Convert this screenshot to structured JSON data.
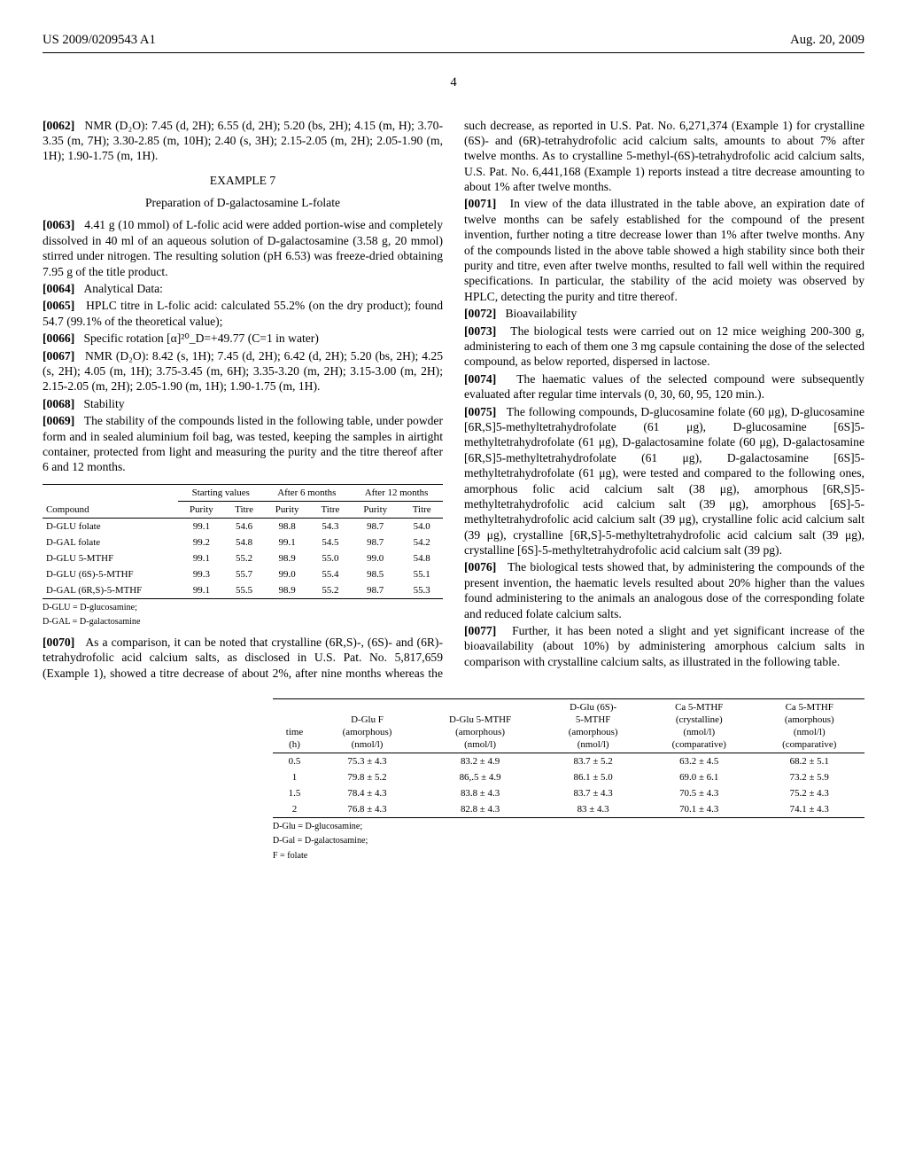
{
  "header": {
    "left": "US 2009/0209543 A1",
    "right": "Aug. 20, 2009"
  },
  "page_number": "4",
  "p0062": {
    "num": "[0062]",
    "text": "NMR (D₂O): 7.45 (d, 2H); 6.55 (d, 2H); 5.20 (bs, 2H); 4.15 (m, H); 3.70-3.35 (m, 7H); 3.30-2.85 (m, 10H); 2.40 (s, 3H); 2.15-2.05 (m, 2H); 2.05-1.90 (m, 1H); 1.90-1.75 (m, 1H)."
  },
  "example7": {
    "title": "EXAMPLE 7",
    "subtitle": "Preparation of D-galactosamine L-folate"
  },
  "p0063": {
    "num": "[0063]",
    "text": "4.41 g (10 mmol) of L-folic acid were added portion-wise and completely dissolved in 40 ml of an aqueous solution of D-galactosamine (3.58 g, 20 mmol) stirred under nitrogen. The resulting solution (pH 6.53) was freeze-dried obtaining 7.95 g of the title product."
  },
  "p0064": {
    "num": "[0064]",
    "text": "Analytical Data:"
  },
  "p0065": {
    "num": "[0065]",
    "text": "HPLC titre in L-folic acid: calculated 55.2% (on the dry product); found 54.7 (99.1% of the theoretical value);"
  },
  "p0066": {
    "num": "[0066]",
    "text": "Specific rotation [α]²⁰_D=+49.77 (C=1 in water)"
  },
  "p0067": {
    "num": "[0067]",
    "text": "NMR (D₂O): 8.42 (s, 1H); 7.45 (d, 2H); 6.42 (d, 2H); 5.20 (bs, 2H); 4.25 (s, 2H); 4.05 (m, 1H); 3.75-3.45 (m, 6H); 3.35-3.20 (m, 2H); 3.15-3.00 (m, 2H); 2.15-2.05 (m, 2H); 2.05-1.90 (m, 1H); 1.90-1.75 (m, 1H)."
  },
  "p0068": {
    "num": "[0068]",
    "text": "Stability"
  },
  "p0069": {
    "num": "[0069]",
    "text": "The stability of the compounds listed in the following table, under powder form and in sealed aluminium foil bag, was tested, keeping the samples in airtight container, protected from light and measuring the purity and the titre thereof after 6 and 12 months."
  },
  "stability_table": {
    "group_headers": [
      "Starting values",
      "After 6 months",
      "After 12 months"
    ],
    "columns": [
      "Compound",
      "Purity",
      "Titre",
      "Purity",
      "Titre",
      "Purity",
      "Titre"
    ],
    "rows": [
      [
        "D-GLU folate",
        "99.1",
        "54.6",
        "98.8",
        "54.3",
        "98.7",
        "54.0"
      ],
      [
        "D-GAL folate",
        "99.2",
        "54.8",
        "99.1",
        "54.5",
        "98.7",
        "54.2"
      ],
      [
        "D-GLU 5-MTHF",
        "99.1",
        "55.2",
        "98.9",
        "55.0",
        "99.0",
        "54.8"
      ],
      [
        "D-GLU (6S)-5-MTHF",
        "99.3",
        "55.7",
        "99.0",
        "55.4",
        "98.5",
        "55.1"
      ],
      [
        "D-GAL (6R,S)-5-MTHF",
        "99.1",
        "55.5",
        "98.9",
        "55.2",
        "98.7",
        "55.3"
      ]
    ],
    "footnotes": [
      "D-GLU = D-glucosamine;",
      "D-GAL = D-galactosamine"
    ]
  },
  "p0070": {
    "num": "[0070]",
    "text": "As a comparison, it can be noted that crystalline (6R,S)-, (6S)- and (6R)-tetrahydrofolic acid calcium salts, as disclosed in U.S. Pat. No. 5,817,659 (Example 1), showed a titre decrease of about 2%, after nine months whereas the such decrease, as reported in U.S. Pat. No. 6,271,374 (Example 1) for crystalline (6S)- and (6R)-tetrahydrofolic acid calcium salts, amounts to about 7% after twelve months. As to crystalline 5-methyl-(6S)-tetrahydrofolic acid calcium salts, U.S. Pat. No. 6,441,168 (Example 1) reports instead a titre decrease amounting to about 1% after twelve months."
  },
  "p0071": {
    "num": "[0071]",
    "text": "In view of the data illustrated in the table above, an expiration date of twelve months can be safely established for the compound of the present invention, further noting a titre decrease lower than 1% after twelve months. Any of the compounds listed in the above table showed a high stability since both their purity and titre, even after twelve months, resulted to fall well within the required specifications. In particular, the stability of the acid moiety was observed by HPLC, detecting the purity and titre thereof."
  },
  "p0072": {
    "num": "[0072]",
    "text": "Bioavailability"
  },
  "p0073": {
    "num": "[0073]",
    "text": "The biological tests were carried out on 12 mice weighing 200-300 g, administering to each of them one 3 mg capsule containing the dose of the selected compound, as below reported, dispersed in lactose."
  },
  "p0074": {
    "num": "[0074]",
    "text": "The haematic values of the selected compound were subsequently evaluated after regular time intervals (0, 30, 60, 95, 120 min.)."
  },
  "p0075": {
    "num": "[0075]",
    "text": "The following compounds, D-glucosamine folate (60 μg), D-glucosamine [6R,S]5-methyltetrahydrofolate (61 μg), D-glucosamine [6S]5-methyltetrahydrofolate (61 μg), D-galactosamine folate (60 μg), D-galactosamine [6R,S]5-methyltetrahydrofolate (61 μg), D-galactosamine [6S]5-methyltetrahydrofolate (61 μg), were tested and compared to the following ones, amorphous folic acid calcium salt (38 μg), amorphous [6R,S]5-methyltetrahydrofolic acid calcium salt (39 μg), amorphous [6S]-5-methyltetrahydrofolic acid calcium salt (39 μg), crystalline folic acid calcium salt (39 μg), crystalline [6R,S]-5-methyltetrahydrofolic acid calcium salt (39 μg), crystalline [6S]-5-methyltetrahydrofolic acid calcium salt (39 pg)."
  },
  "p0076": {
    "num": "[0076]",
    "text": "The biological tests showed that, by administering the compounds of the present invention, the haematic levels resulted about 20% higher than the values found administering to the animals an analogous dose of the corresponding folate and reduced folate calcium salts."
  },
  "p0077": {
    "num": "[0077]",
    "text": "Further, it has been noted a slight and yet significant increase of the bioavailability (about 10%) by administering amorphous calcium salts in comparison with crystalline calcium salts, as illustrated in the following table."
  },
  "bio_table": {
    "columns": [
      "time (h)",
      "D-Glu F (amorphous) (nmol/l)",
      "D-Glu 5-MTHF (amorphous) (nmol/l)",
      "D-Glu (6S)-5-MTHF (amorphous) (nmol/l)",
      "Ca 5-MTHF (crystalline) (nmol/l) (comparative)",
      "Ca 5-MTHF (amorphous) (nmol/l) (comparative)"
    ],
    "rows": [
      [
        "0.5",
        "75.3 ± 4.3",
        "83.2 ± 4.9",
        "83.7 ± 5.2",
        "63.2 ± 4.5",
        "68.2 ± 5.1"
      ],
      [
        "1",
        "79.8 ± 5.2",
        "86,.5 ± 4.9",
        "86.1 ± 5.0",
        "69.0 ± 6.1",
        "73.2 ± 5.9"
      ],
      [
        "1.5",
        "78.4 ± 4.3",
        "83.8 ± 4.3",
        "83.7 ± 4.3",
        "70.5 ± 4.3",
        "75.2 ± 4.3"
      ],
      [
        "2",
        "76.8 ± 4.3",
        "82.8 ± 4.3",
        "83 ± 4.3",
        "70.1 ± 4.3",
        "74.1 ± 4.3"
      ]
    ],
    "footnotes": [
      "D-Glu = D-glucosamine;",
      "D-Gal = D-galactosamine;",
      "F = folate"
    ]
  }
}
